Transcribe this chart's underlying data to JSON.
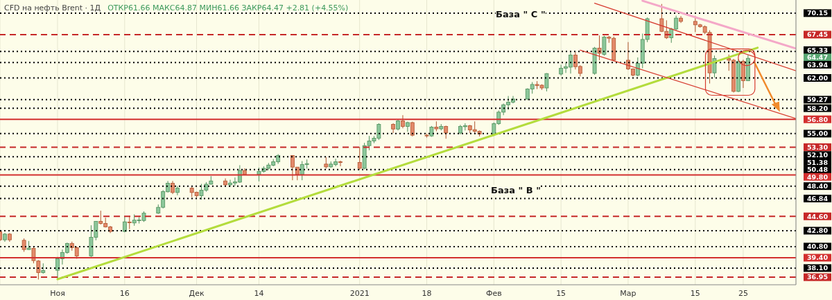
{
  "chart_data": {
    "type": "candlestick",
    "title": "CFD на нефть Brent · 1Д",
    "subtitle": "ОТКР61.66 МАКС64.87 МИН61.66 ЗАКР64.47 +2.81 (+4.55%)",
    "x": [
      "2020-10-21",
      "2020-10-22",
      "2020-10-23",
      "2020-10-26",
      "2020-10-27",
      "2020-10-28",
      "2020-10-29",
      "2020-10-30",
      "2020-11-02",
      "2020-11-03",
      "2020-11-04",
      "2020-11-05",
      "2020-11-06",
      "2020-11-09",
      "2020-11-10",
      "2020-11-11",
      "2020-11-12",
      "2020-11-13",
      "2020-11-16",
      "2020-11-17",
      "2020-11-18",
      "2020-11-19",
      "2020-11-20",
      "2020-11-23",
      "2020-11-24",
      "2020-11-25",
      "2020-11-26",
      "2020-11-27",
      "2020-11-30",
      "2020-12-01",
      "2020-12-02",
      "2020-12-03",
      "2020-12-04",
      "2020-12-07",
      "2020-12-08",
      "2020-12-09",
      "2020-12-10",
      "2020-12-11",
      "2020-12-14",
      "2020-12-15",
      "2020-12-16",
      "2020-12-17",
      "2020-12-18",
      "2020-12-21",
      "2020-12-22",
      "2020-12-23",
      "2020-12-24",
      "2020-12-28",
      "2020-12-29",
      "2020-12-30",
      "2020-12-31",
      "2021-01-04",
      "2021-01-05",
      "2021-01-06",
      "2021-01-07",
      "2021-01-08",
      "2021-01-11",
      "2021-01-12",
      "2021-01-13",
      "2021-01-14",
      "2021-01-15",
      "2021-01-18",
      "2021-01-19",
      "2021-01-20",
      "2021-01-21",
      "2021-01-22",
      "2021-01-25",
      "2021-01-26",
      "2021-01-27",
      "2021-01-28",
      "2021-01-29",
      "2021-02-01",
      "2021-02-02",
      "2021-02-03",
      "2021-02-04",
      "2021-02-05",
      "2021-02-08",
      "2021-02-09",
      "2021-02-10",
      "2021-02-11",
      "2021-02-12",
      "2021-02-15",
      "2021-02-16",
      "2021-02-17",
      "2021-02-18",
      "2021-02-19",
      "2021-02-22",
      "2021-02-23",
      "2021-02-24",
      "2021-02-25",
      "2021-02-26",
      "2021-03-01",
      "2021-03-02",
      "2021-03-03",
      "2021-03-04",
      "2021-03-05",
      "2021-03-08",
      "2021-03-09",
      "2021-03-10",
      "2021-03-11",
      "2021-03-12",
      "2021-03-15",
      "2021-03-16",
      "2021-03-17",
      "2021-03-18",
      "2021-03-19",
      "2021-03-22",
      "2021-03-23",
      "2021-03-24",
      "2021-03-25",
      "2021-03-26"
    ],
    "ohlc": [
      [
        42.67,
        42.9,
        41.5,
        41.65
      ],
      [
        41.65,
        42.5,
        41.4,
        42.37
      ],
      [
        42.37,
        42.5,
        41.4,
        41.65
      ],
      [
        41.59,
        41.83,
        40.14,
        40.43
      ],
      [
        40.43,
        41.5,
        40.4,
        40.61
      ],
      [
        40.58,
        40.7,
        38.69,
        39.04
      ],
      [
        38.98,
        39.1,
        36.66,
        37.53
      ],
      [
        37.53,
        38.69,
        37.4,
        37.79
      ],
      [
        37.82,
        39.5,
        36.69,
        39.27
      ],
      [
        39.27,
        40.43,
        38.54,
        40.06
      ],
      [
        40.06,
        41.3,
        39.9,
        41.19
      ],
      [
        41.19,
        41.42,
        40.28,
        40.67
      ],
      [
        40.67,
        40.8,
        39.27,
        39.62
      ],
      [
        39.62,
        43.48,
        39.5,
        41.97
      ],
      [
        41.97,
        44.0,
        41.59,
        43.98
      ],
      [
        43.98,
        45.31,
        43.57,
        43.71
      ],
      [
        43.71,
        44.44,
        43.2,
        43.28
      ],
      [
        43.28,
        43.4,
        42.5,
        42.7
      ],
      [
        42.7,
        44.58,
        42.6,
        43.91
      ],
      [
        43.89,
        44.64,
        43.0,
        43.8
      ],
      [
        43.77,
        44.85,
        43.42,
        44.12
      ],
      [
        44.13,
        44.5,
        43.7,
        44.15
      ],
      [
        44.08,
        45.22,
        43.9,
        45.0
      ],
      [
        45.0,
        46.09,
        44.9,
        45.74
      ],
      [
        45.74,
        47.9,
        45.6,
        47.72
      ],
      [
        47.69,
        49.05,
        47.6,
        48.76
      ],
      [
        48.76,
        49.05,
        47.4,
        47.6
      ],
      [
        47.6,
        48.42,
        47.25,
        48.15
      ],
      [
        48.15,
        48.3,
        47.02,
        47.6
      ],
      [
        47.63,
        47.7,
        46.96,
        47.2
      ],
      [
        47.2,
        48.68,
        46.7,
        47.89
      ],
      [
        47.89,
        48.9,
        47.7,
        48.64
      ],
      [
        48.64,
        49.66,
        48.6,
        49.05
      ],
      [
        49.05,
        49.37,
        48.33,
        48.56
      ],
      [
        48.56,
        49.2,
        48.3,
        48.79
      ],
      [
        48.79,
        49.49,
        48.45,
        48.94
      ],
      [
        48.9,
        51.03,
        48.8,
        50.36
      ],
      [
        50.36,
        50.64,
        49.8,
        49.86
      ],
      [
        49.86,
        50.73,
        49.0,
        50.24
      ],
      [
        50.24,
        50.9,
        50.1,
        50.64
      ],
      [
        50.64,
        51.31,
        50.4,
        51.05
      ],
      [
        51.03,
        51.81,
        50.9,
        51.46
      ],
      [
        51.46,
        52.42,
        51.2,
        52.25
      ],
      [
        52.25,
        52.3,
        49.14,
        50.79
      ],
      [
        50.79,
        50.8,
        49.14,
        49.86
      ],
      [
        49.86,
        51.55,
        49.14,
        51.11
      ],
      [
        51.11,
        51.75,
        50.6,
        51.23
      ],
      [
        51.17,
        52.04,
        50.6,
        50.82
      ],
      [
        50.82,
        51.5,
        50.7,
        51.17
      ],
      [
        51.11,
        51.84,
        50.9,
        51.46
      ],
      [
        51.46,
        51.6,
        50.9,
        51.38
      ],
      [
        51.38,
        53.34,
        50.44,
        50.64
      ],
      [
        50.64,
        53.84,
        50.5,
        53.49
      ],
      [
        53.49,
        54.71,
        52.91,
        54.07
      ],
      [
        54.07,
        54.7,
        53.8,
        54.42
      ],
      [
        54.42,
        56.3,
        54.2,
        56.16
      ],
      [
        56.16,
        56.3,
        55.08,
        55.58
      ],
      [
        55.58,
        56.8,
        55.4,
        56.6
      ],
      [
        56.6,
        57.32,
        55.67,
        55.9
      ],
      [
        55.9,
        56.5,
        55.23,
        56.39
      ],
      [
        56.39,
        56.5,
        54.65,
        54.8
      ],
      [
        54.8,
        55.0,
        54.5,
        54.71
      ],
      [
        54.71,
        55.96,
        54.6,
        55.82
      ],
      [
        55.82,
        56.54,
        55.3,
        55.6
      ],
      [
        55.6,
        56.2,
        55.4,
        55.9
      ],
      [
        55.9,
        56.0,
        54.36,
        55.08
      ],
      [
        55.08,
        56.1,
        54.9,
        55.9
      ],
      [
        55.87,
        56.3,
        55.4,
        56.0
      ],
      [
        56.0,
        56.1,
        55.08,
        55.47
      ],
      [
        55.5,
        56.54,
        55.08,
        55.29
      ],
      [
        55.29,
        55.4,
        54.65,
        54.95
      ],
      [
        54.95,
        56.4,
        54.7,
        56.25
      ],
      [
        56.25,
        57.91,
        56.1,
        57.7
      ],
      [
        57.7,
        58.78,
        57.32,
        58.63
      ],
      [
        58.63,
        59.73,
        57.99,
        58.95
      ],
      [
        58.95,
        59.73,
        58.8,
        59.35
      ],
      [
        59.35,
        60.7,
        59.2,
        60.6
      ],
      [
        60.6,
        61.48,
        60.02,
        61.18
      ],
      [
        61.18,
        61.6,
        60.6,
        61.04
      ],
      [
        61.09,
        61.2,
        60.5,
        60.74
      ],
      [
        60.74,
        62.6,
        60.31,
        62.55
      ],
      [
        62.49,
        63.65,
        62.3,
        63.22
      ],
      [
        63.22,
        63.94,
        62.63,
        63.42
      ],
      [
        63.36,
        65.25,
        62.55,
        64.87
      ],
      [
        64.87,
        65.25,
        63.07,
        63.42
      ],
      [
        63.45,
        63.6,
        62.2,
        62.57
      ],
      [
        62.57,
        65.9,
        62.4,
        65.74
      ],
      [
        65.74,
        67.34,
        64.23,
        65.1
      ],
      [
        64.96,
        67.3,
        64.8,
        67.14
      ],
      [
        67.14,
        67.28,
        66.42,
        66.99
      ],
      [
        66.99,
        67.2,
        64.1,
        64.23
      ],
      [
        64.23,
        66.51,
        63.0,
        63.13
      ],
      [
        63.13,
        63.2,
        62.2,
        62.35
      ],
      [
        62.35,
        64.58,
        62.2,
        63.85
      ],
      [
        63.85,
        67.57,
        63.22,
        66.84
      ],
      [
        66.84,
        69.6,
        66.5,
        69.45
      ],
      [
        69.45,
        71.3,
        67.77,
        67.86
      ],
      [
        67.86,
        69.25,
        66.9,
        67.05
      ],
      [
        67.05,
        68.3,
        66.42,
        68.15
      ],
      [
        68.15,
        69.83,
        68.0,
        69.52
      ],
      [
        69.52,
        69.78,
        68.91,
        69.11
      ],
      [
        69.11,
        69.78,
        67.77,
        68.68
      ],
      [
        68.68,
        68.8,
        68.32,
        68.45
      ],
      [
        68.45,
        68.6,
        67.5,
        67.72
      ],
      [
        67.72,
        68.0,
        61.3,
        62.64
      ],
      [
        62.64,
        64.81,
        62.05,
        64.44
      ],
      [
        64.44,
        64.95,
        62.9,
        64.23
      ],
      [
        64.23,
        64.4,
        60.17,
        60.31
      ],
      [
        60.31,
        64.38,
        60.22,
        64.09
      ],
      [
        64.09,
        64.3,
        60.74,
        61.66
      ],
      [
        61.66,
        64.87,
        61.66,
        64.47
      ]
    ],
    "series": [
      {
        "type": "line",
        "color": "#b3dc3c",
        "x": [
          "2020-11-02",
          "2021-03-28"
        ],
        "values": [
          36.7,
          65.8
        ]
      },
      {
        "type": "line",
        "color": "#f4a8c8",
        "x": [
          "2021-03-04",
          "2021-04-05"
        ],
        "values": [
          71.7,
          65.7
        ]
      },
      {
        "type": "line",
        "color": "#d63a2f",
        "x": [
          "2021-02-22",
          "2021-04-05"
        ],
        "values": [
          71.4,
          62.9
        ]
      },
      {
        "type": "line",
        "color": "#d63a2f",
        "x": [
          "2021-02-19",
          "2021-04-05"
        ],
        "values": [
          65.5,
          56.9
        ]
      }
    ],
    "xlim": [
      "2020-10-21",
      "2021-04-05"
    ],
    "xticks": [
      {
        "value": "2020-11-02",
        "label": "Ноя"
      },
      {
        "value": "2020-11-16",
        "label": "16"
      },
      {
        "value": "2020-12-01",
        "label": "Дек"
      },
      {
        "value": "2020-12-14",
        "label": "14"
      },
      {
        "value": "2021-01-04",
        "label": "2021"
      },
      {
        "value": "2021-01-18",
        "label": "18"
      },
      {
        "value": "2021-02-01",
        "label": "Фев"
      },
      {
        "value": "2021-02-15",
        "label": "15"
      },
      {
        "value": "2021-03-01",
        "label": "Мар"
      },
      {
        "value": "2021-03-15",
        "label": "15"
      },
      {
        "value": "2021-03-25",
        "label": "25"
      }
    ],
    "ylim": [
      36.0,
      71.8
    ],
    "yticks": [
      70.15,
      67.45,
      65.33,
      64.47,
      63.94,
      {
        "value": 62,
        "label": "62.00"
      },
      59.27,
      {
        "value": 58.2,
        "label": "58.20"
      },
      {
        "value": 56.8,
        "label": "56.80"
      },
      {
        "value": 55,
        "label": "55.00"
      },
      {
        "value": 53.3,
        "label": "53.30"
      },
      {
        "value": 52.1,
        "label": "52.10"
      },
      51.38,
      50.48,
      {
        "value": 49.8,
        "label": "49.80"
      },
      {
        "value": 48.4,
        "label": "48.40"
      },
      46.84,
      {
        "value": 44.6,
        "label": "44.60"
      },
      {
        "value": 42.8,
        "label": "42.80"
      },
      {
        "value": 40.8,
        "label": "40.80"
      },
      {
        "value": 39.4,
        "label": "39.40"
      },
      {
        "value": 38.1,
        "label": "38.10"
      },
      36.95
    ],
    "ref_lines": [
      {
        "axis": "y",
        "value": 70.15,
        "color": "#000000",
        "line_style": "dotted"
      },
      {
        "axis": "y",
        "value": 67.45,
        "color": "#c62828",
        "line_style": "dashed"
      },
      {
        "axis": "y",
        "value": 65.33,
        "color": "#000000",
        "line_style": "dotted"
      },
      {
        "axis": "y",
        "value": 63.94,
        "color": "#000000",
        "line_style": "dotted"
      },
      {
        "axis": "y",
        "value": 62,
        "color": "#000000",
        "line_style": "dotted"
      },
      {
        "axis": "y",
        "value": 59.27,
        "color": "#000000",
        "line_style": "dotted"
      },
      {
        "axis": "y",
        "value": 58.2,
        "color": "#000000",
        "line_style": "dotted"
      },
      {
        "axis": "y",
        "value": 56.8,
        "color": "#d32f2f",
        "line_style": "solid"
      },
      {
        "axis": "y",
        "value": 55,
        "color": "#000000",
        "line_style": "dotted"
      },
      {
        "axis": "y",
        "value": 53.3,
        "color": "#c62828",
        "line_style": "dashed"
      },
      {
        "axis": "y",
        "value": 52.1,
        "color": "#000000",
        "line_style": "dotted"
      },
      {
        "axis": "y",
        "value": 50.48,
        "color": "#000000",
        "line_style": "dotted"
      },
      {
        "axis": "y",
        "value": 49.8,
        "color": "#d32f2f",
        "line_style": "solid"
      },
      {
        "axis": "y",
        "value": 48.4,
        "color": "#000000",
        "line_style": "dotted"
      },
      {
        "axis": "y",
        "value": 46.84,
        "color": "#000000",
        "line_style": "dotted"
      },
      {
        "axis": "y",
        "value": 44.6,
        "color": "#c62828",
        "line_style": "dashed"
      },
      {
        "axis": "y",
        "value": 42.8,
        "color": "#000000",
        "line_style": "dotted"
      },
      {
        "axis": "y",
        "value": 40.8,
        "color": "#000000",
        "line_style": "dotted"
      },
      {
        "axis": "y",
        "value": 39.4,
        "color": "#d32f2f",
        "line_style": "solid"
      },
      {
        "axis": "y",
        "value": 38.1,
        "color": "#000000",
        "line_style": "dotted"
      },
      {
        "axis": "y",
        "value": 36.95,
        "color": "#c62828",
        "line_style": "dashed"
      }
    ],
    "annotations": [
      "База \" C \"",
      "База \" В \""
    ],
    "grid": "x"
  }
}
